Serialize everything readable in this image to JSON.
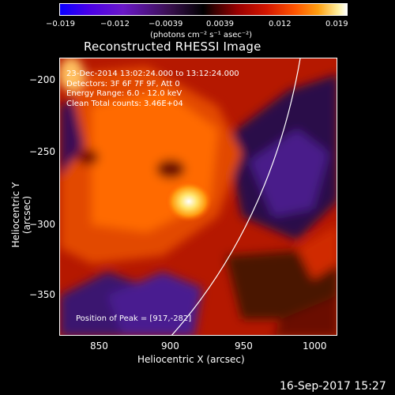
{
  "colorbar": {
    "ticks": [
      "−0.019",
      "−0.012",
      "−0.0039",
      "0.0039",
      "0.012",
      "0.019"
    ],
    "unit": "(photons cm⁻² s⁻¹ asec⁻²)"
  },
  "title": "Reconstructed RHESSI Image",
  "info": {
    "time": "23-Dec-2014 13:02:24.000 to 13:12:24.000",
    "detectors": "Detectors: 3F 6F 7F 9F, Att 0",
    "energy": "Energy Range: 6.0 - 12.0 keV",
    "clean": "Clean    Total counts: 3.46E+04",
    "peak": "Position of Peak = [917,-282]"
  },
  "axes": {
    "xlabel": "Heliocentric X (arcsec)",
    "ylabel": "Heliocentric Y (arcsec)",
    "xticks": [
      "850",
      "900",
      "950",
      "1000"
    ],
    "yticks": [
      "−200",
      "−250",
      "−300",
      "−350"
    ]
  },
  "footer": {
    "date": "16-Sep-2017 15:27"
  }
}
